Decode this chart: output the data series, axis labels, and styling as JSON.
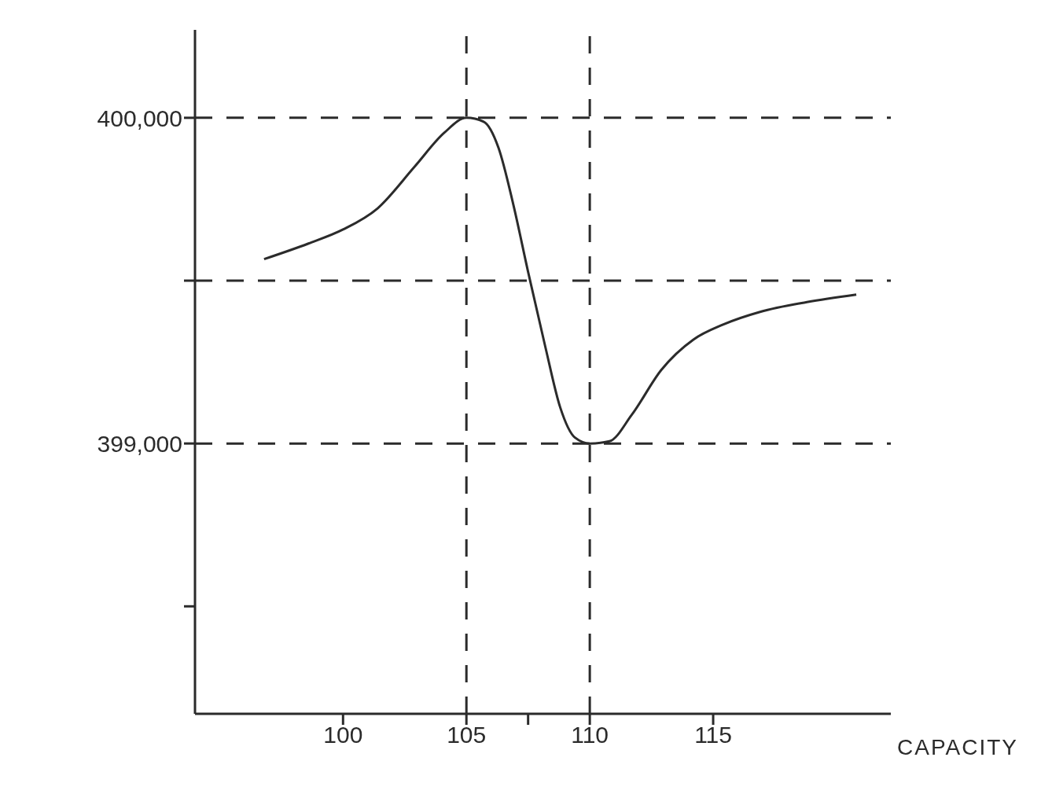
{
  "chart_data": {
    "type": "line",
    "xlabel": "CAPACITY",
    "x": [
      96.8,
      98.6,
      100,
      101.4,
      102.9,
      104.1,
      105,
      105.7,
      106.3,
      106.9,
      107.5,
      108.2,
      108.8,
      109.4,
      110,
      110.8,
      111.7,
      112.9,
      114.2,
      115.4,
      116.9,
      118.8,
      120.8
    ],
    "series": [
      {
        "color": "#2b2b2b",
        "values": [
          399566,
          399614,
          399657,
          399722,
          399850,
          399954,
          400000,
          399988,
          399908,
          399734,
          399527,
          399296,
          399111,
          399018,
          399000,
          399007,
          399088,
          399226,
          399319,
          399365,
          399404,
          399434,
          399457
        ]
      }
    ],
    "xlim": [
      94,
      122.2
    ],
    "xticks": [
      100,
      105,
      {
        "value": 107.5,
        "label": null
      },
      110,
      115
    ],
    "ylim": [
      398170,
      400270
    ],
    "yticks": [
      {
        "value": 398500,
        "label": null
      },
      {
        "value": 399000,
        "label": "399,000"
      },
      {
        "value": 399500,
        "label": null
      },
      {
        "value": 400000,
        "label": "400,000"
      }
    ],
    "ref_lines": [
      {
        "axis": "y",
        "value": 400000,
        "line_style": "dashed"
      },
      {
        "axis": "y",
        "value": 399500,
        "line_style": "dashed"
      },
      {
        "axis": "y",
        "value": 399000,
        "line_style": "dashed"
      },
      {
        "axis": "x",
        "value": 105,
        "line_style": "dashed"
      },
      {
        "axis": "x",
        "value": 110,
        "line_style": "dashed"
      }
    ],
    "grid": false,
    "legend": false,
    "marker": "none",
    "line_style": "solid"
  }
}
